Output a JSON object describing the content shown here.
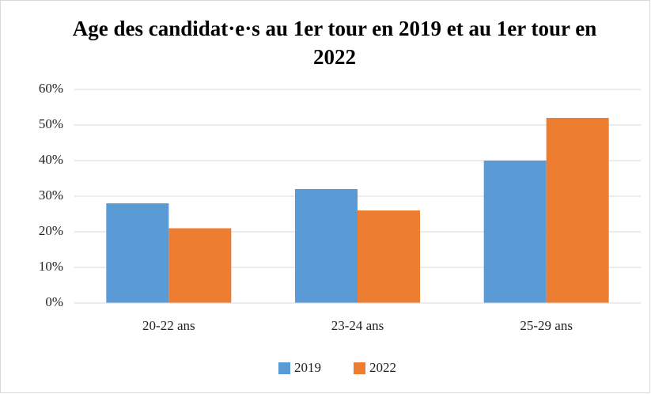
{
  "chart_data": {
    "type": "bar",
    "title": "Age des candidat·e·s au 1er tour en 2019 et au 1er tour en 2022",
    "categories": [
      "20-22 ans",
      "23-24 ans",
      "25-29 ans"
    ],
    "series": [
      {
        "name": "2019",
        "color": "#5b9bd5",
        "values": [
          28,
          32,
          40
        ]
      },
      {
        "name": "2022",
        "color": "#ed7d31",
        "values": [
          21,
          26,
          52
        ]
      }
    ],
    "ylim": [
      0,
      60
    ],
    "yticks": [
      {
        "value": 0,
        "label": "0%"
      },
      {
        "value": 10,
        "label": "10%"
      },
      {
        "value": 20,
        "label": "20%"
      },
      {
        "value": 30,
        "label": "30%"
      },
      {
        "value": 40,
        "label": "40%"
      },
      {
        "value": 50,
        "label": "50%"
      },
      {
        "value": 60,
        "label": "60%"
      }
    ],
    "grid": true,
    "legend": "bottom"
  }
}
